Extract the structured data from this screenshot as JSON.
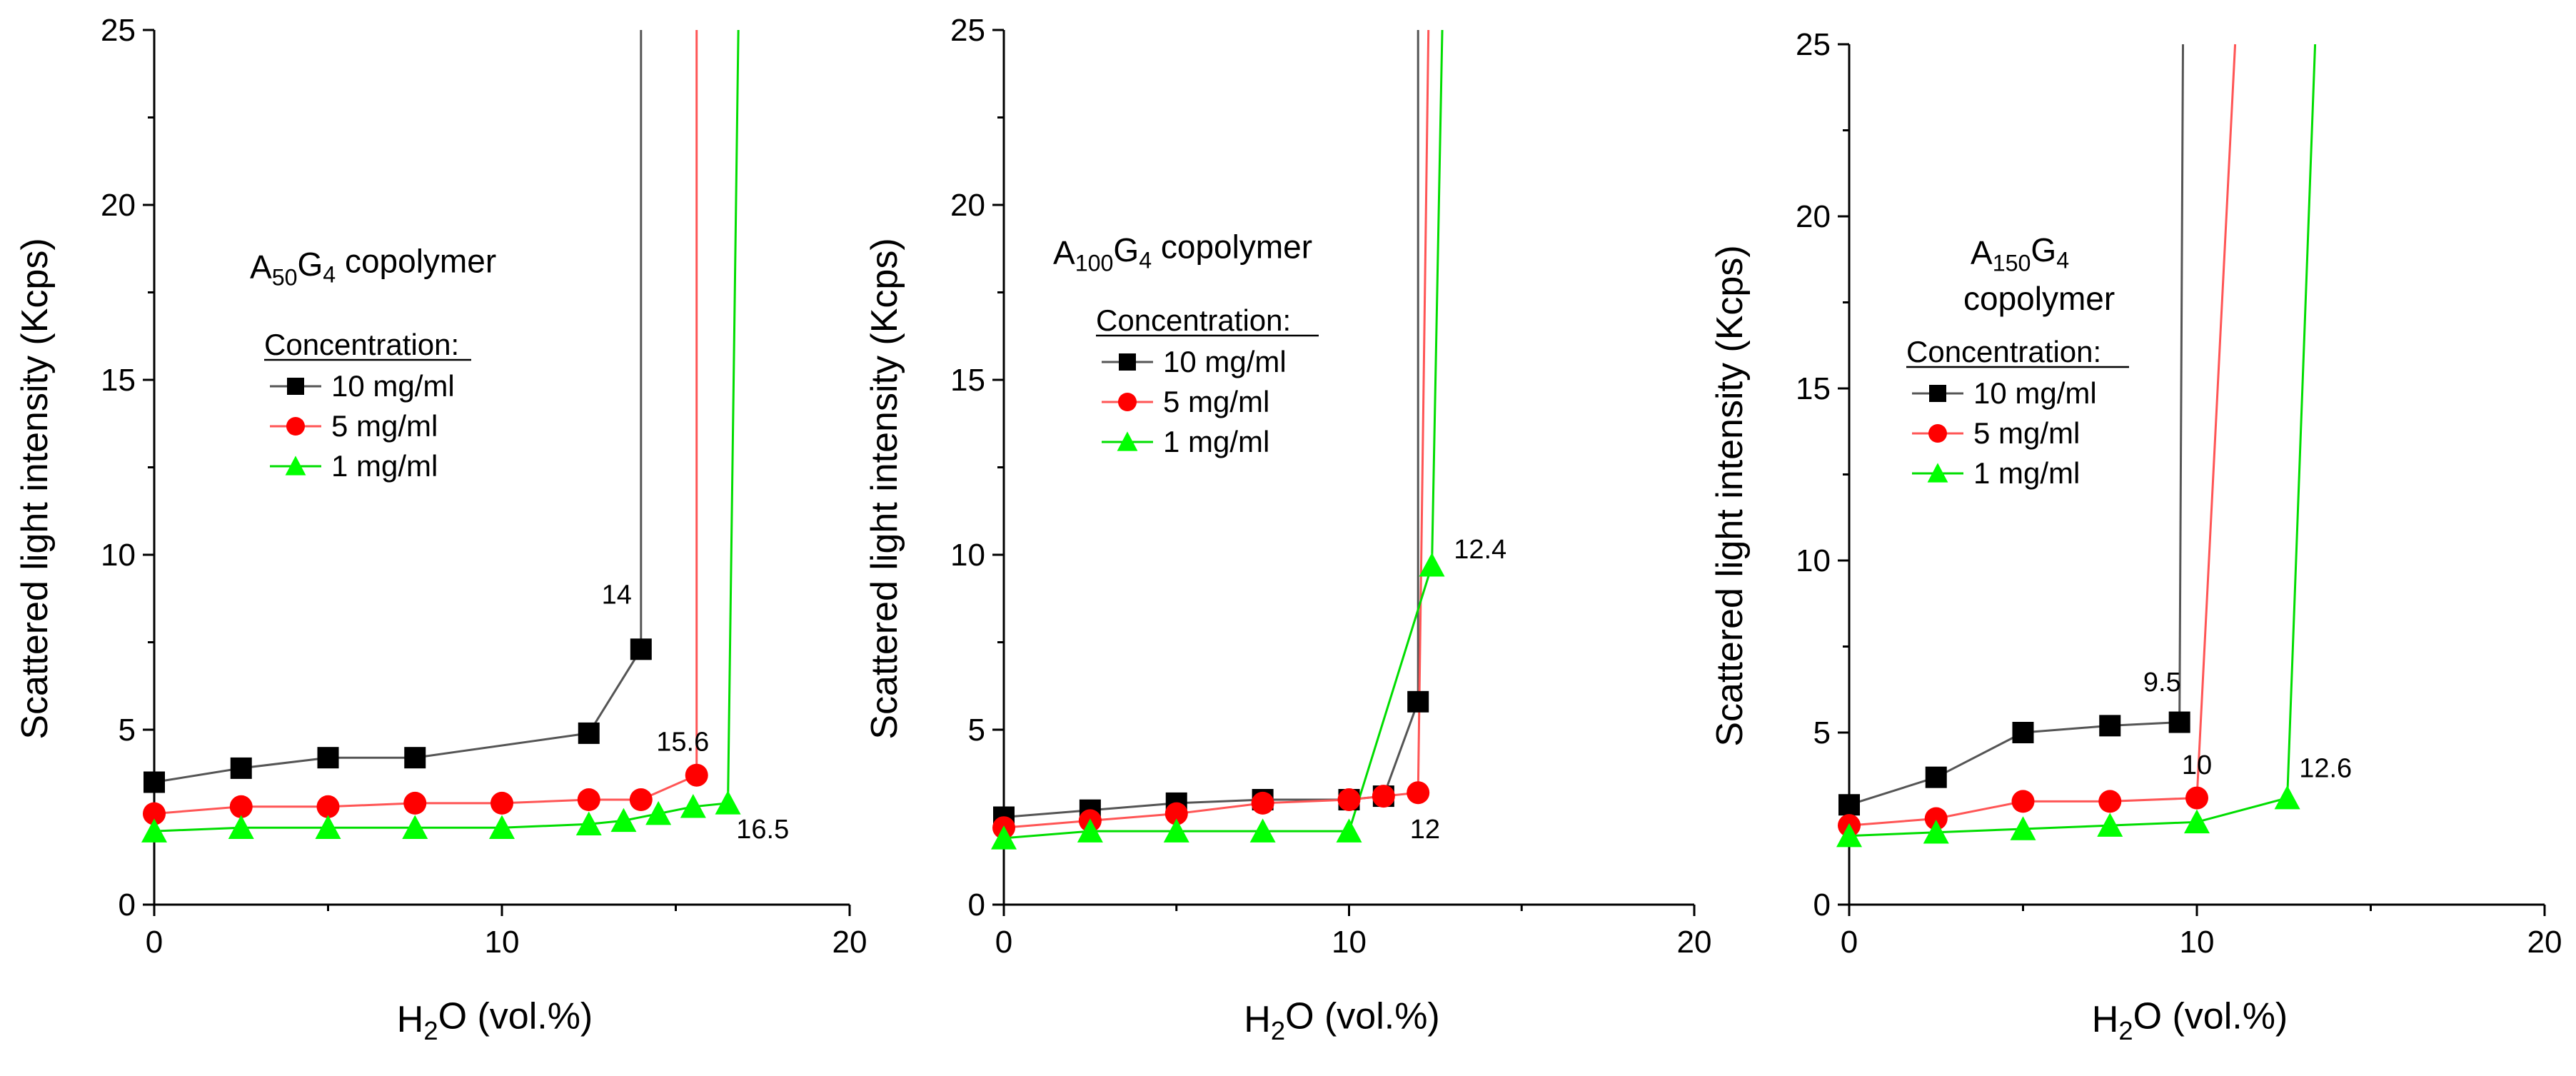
{
  "chart_data": [
    {
      "type": "line",
      "title_parts": [
        [
          "A",
          "n"
        ],
        [
          "50",
          "sub"
        ],
        [
          "G",
          "n"
        ],
        [
          "4",
          "sub"
        ],
        [
          " copolymer",
          "n"
        ]
      ],
      "title_line2": "",
      "xlabel_parts": [
        [
          "H",
          "n"
        ],
        [
          "2",
          "sub"
        ],
        [
          "O (vol.%)",
          "n"
        ]
      ],
      "ylabel": "Scattered light intensity (Kcps)",
      "xlim": [
        0,
        20
      ],
      "ylim": [
        0,
        25
      ],
      "x_ticks": [
        0,
        10,
        20
      ],
      "y_ticks": [
        0,
        5,
        10,
        15,
        20,
        25
      ],
      "legend_heading": "Concentration:",
      "series": [
        {
          "name": "10 mg/ml",
          "color": "#000000",
          "line_color": "#555555",
          "marker": "square",
          "points": [
            [
              0,
              3.5
            ],
            [
              2.5,
              3.9
            ],
            [
              5,
              4.2
            ],
            [
              7.5,
              4.2
            ],
            [
              12.5,
              4.9
            ],
            [
              14,
              7.3
            ]
          ],
          "rise_to": [
            14,
            25
          ]
        },
        {
          "name": "5 mg/ml",
          "color": "#ff0000",
          "line_color": "#ff5555",
          "marker": "circle",
          "points": [
            [
              0,
              2.6
            ],
            [
              2.5,
              2.8
            ],
            [
              5,
              2.8
            ],
            [
              7.5,
              2.9
            ],
            [
              10,
              2.9
            ],
            [
              12.5,
              3.0
            ],
            [
              14,
              3.0
            ],
            [
              15.6,
              3.7
            ]
          ],
          "rise_to": [
            15.6,
            25
          ]
        },
        {
          "name": "1 mg/ml",
          "color": "#00ff00",
          "line_color": "#00dd00",
          "marker": "triangle",
          "points": [
            [
              0,
              2.1
            ],
            [
              2.5,
              2.2
            ],
            [
              5,
              2.2
            ],
            [
              7.5,
              2.2
            ],
            [
              10,
              2.2
            ],
            [
              12.5,
              2.3
            ],
            [
              13.5,
              2.4
            ],
            [
              14.5,
              2.6
            ],
            [
              15.5,
              2.8
            ],
            [
              16.5,
              2.9
            ]
          ],
          "rise_to": [
            16.8,
            25
          ]
        }
      ],
      "annotations": [
        {
          "text": "14",
          "x": 13.3,
          "y": 8.6
        },
        {
          "text": "15.6",
          "x": 15.2,
          "y": 4.4
        },
        {
          "text": "16.5",
          "x": 17.5,
          "y": 1.9
        }
      ]
    },
    {
      "type": "line",
      "title_parts": [
        [
          "A",
          "n"
        ],
        [
          "100",
          "sub"
        ],
        [
          "G",
          "n"
        ],
        [
          "4",
          "sub"
        ],
        [
          " copolymer",
          "n"
        ]
      ],
      "title_line2": "",
      "xlabel_parts": [
        [
          "H",
          "n"
        ],
        [
          "2",
          "sub"
        ],
        [
          "O (vol.%)",
          "n"
        ]
      ],
      "ylabel": "Scattered light intensity (Kcps)",
      "xlim": [
        0,
        20
      ],
      "ylim": [
        0,
        25
      ],
      "x_ticks": [
        0,
        10,
        20
      ],
      "y_ticks": [
        0,
        5,
        10,
        15,
        20,
        25
      ],
      "legend_heading": "Concentration:",
      "series": [
        {
          "name": "10 mg/ml",
          "color": "#000000",
          "line_color": "#555555",
          "marker": "square",
          "points": [
            [
              0,
              2.5
            ],
            [
              2.5,
              2.7
            ],
            [
              5,
              2.9
            ],
            [
              7.5,
              3.0
            ],
            [
              10,
              3.0
            ],
            [
              11,
              3.1
            ],
            [
              12,
              5.8
            ]
          ],
          "rise_to": [
            12,
            25
          ]
        },
        {
          "name": "5 mg/ml",
          "color": "#ff0000",
          "line_color": "#ff5555",
          "marker": "circle",
          "points": [
            [
              0,
              2.2
            ],
            [
              2.5,
              2.4
            ],
            [
              5,
              2.6
            ],
            [
              7.5,
              2.9
            ],
            [
              10,
              3.0
            ],
            [
              11,
              3.1
            ],
            [
              12,
              3.2
            ]
          ],
          "rise_to": [
            12.3,
            25
          ]
        },
        {
          "name": "1 mg/ml",
          "color": "#00ff00",
          "line_color": "#00dd00",
          "marker": "triangle",
          "points": [
            [
              0,
              1.9
            ],
            [
              2.5,
              2.1
            ],
            [
              5,
              2.1
            ],
            [
              7.5,
              2.1
            ],
            [
              10,
              2.1
            ],
            [
              12.4,
              9.7
            ]
          ],
          "rise_to": [
            12.7,
            25
          ]
        }
      ],
      "annotations": [
        {
          "text": "12.4",
          "x": 13.8,
          "y": 9.9
        },
        {
          "text": "12",
          "x": 12.2,
          "y": 1.9
        }
      ]
    },
    {
      "type": "line",
      "title_parts": [
        [
          "A",
          "n"
        ],
        [
          "150",
          "sub"
        ],
        [
          "G",
          "n"
        ],
        [
          "4",
          "sub"
        ]
      ],
      "title_line2": "copolymer",
      "xlabel_parts": [
        [
          "H",
          "n"
        ],
        [
          "2",
          "sub"
        ],
        [
          "O (vol.%)",
          "n"
        ]
      ],
      "ylabel": "Scattered light intensity (Kcps)",
      "xlim": [
        0,
        20
      ],
      "ylim": [
        0,
        25
      ],
      "x_ticks": [
        0,
        10,
        20
      ],
      "y_ticks": [
        0,
        5,
        10,
        15,
        20,
        25
      ],
      "legend_heading": "Concentration:",
      "series": [
        {
          "name": "10 mg/ml",
          "color": "#000000",
          "line_color": "#555555",
          "marker": "square",
          "points": [
            [
              0,
              2.9
            ],
            [
              2.5,
              3.7
            ],
            [
              5,
              5.0
            ],
            [
              7.5,
              5.2
            ],
            [
              9.5,
              5.3
            ]
          ],
          "rise_to": [
            9.6,
            25
          ]
        },
        {
          "name": "5 mg/ml",
          "color": "#ff0000",
          "line_color": "#ff5555",
          "marker": "circle",
          "points": [
            [
              0,
              2.3
            ],
            [
              2.5,
              2.5
            ],
            [
              5,
              3.0
            ],
            [
              7.5,
              3.0
            ],
            [
              10,
              3.1
            ]
          ],
          "rise_to": [
            11.1,
            25
          ]
        },
        {
          "name": "1 mg/ml",
          "color": "#00ff00",
          "line_color": "#00dd00",
          "marker": "triangle",
          "points": [
            [
              0,
              2.0
            ],
            [
              2.5,
              2.1
            ],
            [
              5,
              2.2
            ],
            [
              7.5,
              2.3
            ],
            [
              10,
              2.4
            ],
            [
              12.6,
              3.1
            ]
          ],
          "rise_to": [
            13.4,
            25
          ]
        }
      ],
      "annotations": [
        {
          "text": "9.5",
          "x": 9.0,
          "y": 6.2
        },
        {
          "text": "10",
          "x": 10.0,
          "y": 3.8
        },
        {
          "text": "12.6",
          "x": 13.7,
          "y": 3.7
        }
      ]
    }
  ]
}
